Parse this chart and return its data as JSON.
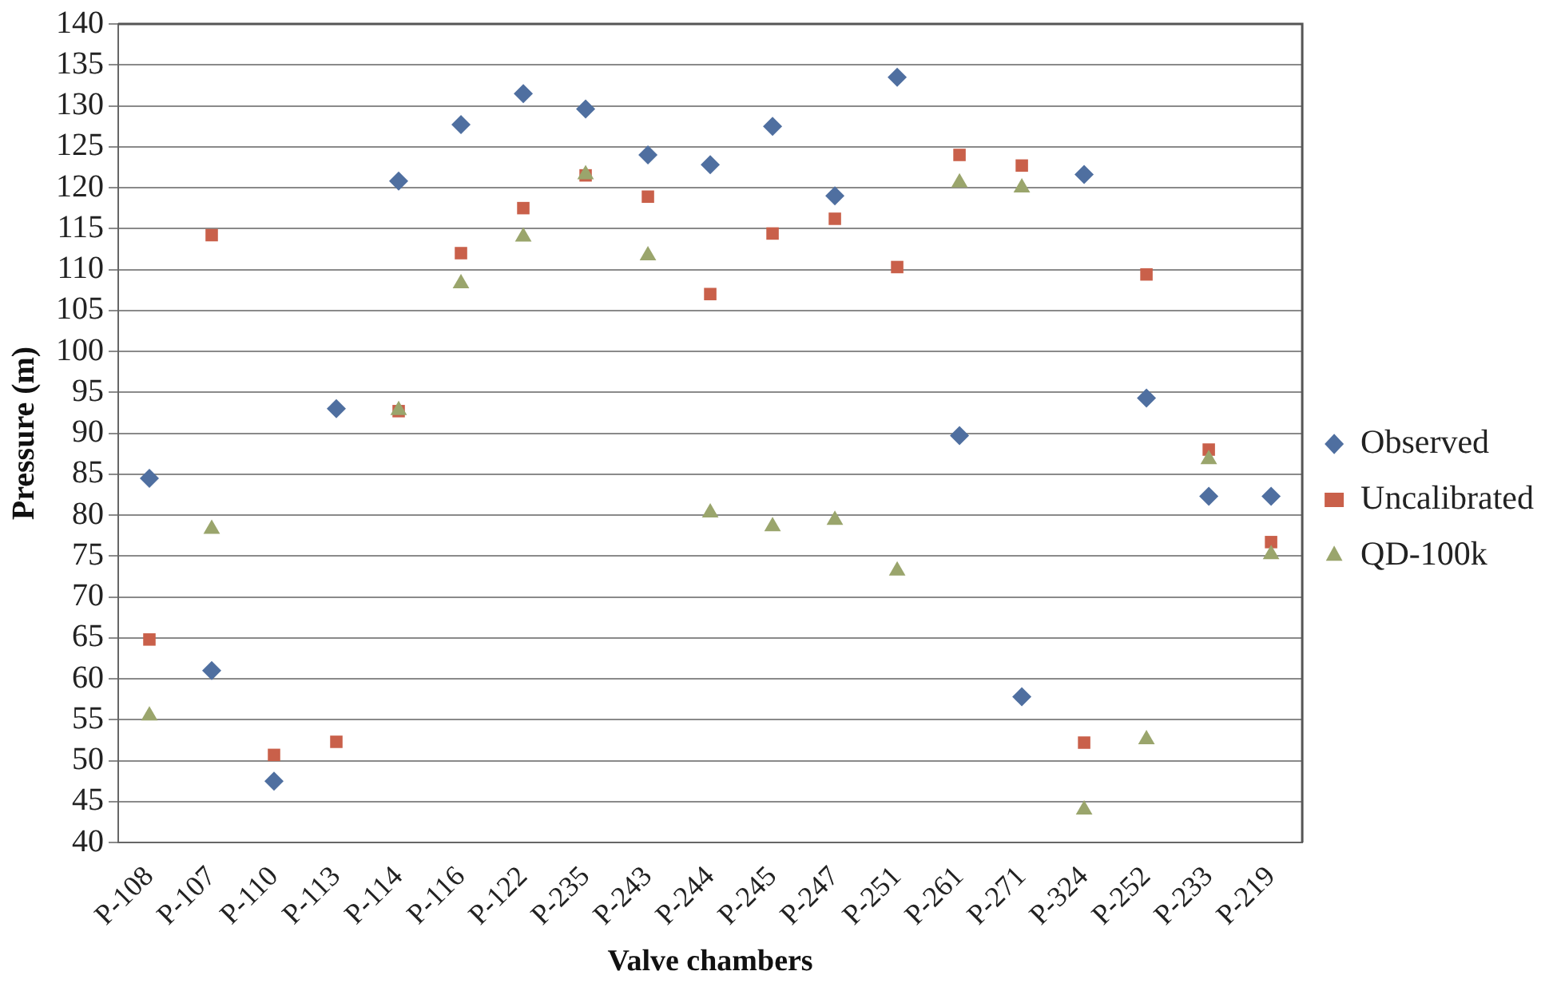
{
  "chart_data": {
    "type": "scatter",
    "xlabel": "Valve chambers",
    "ylabel": "Pressure (m)",
    "categories": [
      "P-108",
      "P-107",
      "P-110",
      "P-113",
      "P-114",
      "P-116",
      "P-122",
      "P-235",
      "P-243",
      "P-244",
      "P-245",
      "P-247",
      "P-251",
      "P-261",
      "P-271",
      "P-324",
      "P-252",
      "P-233",
      "P-219"
    ],
    "series": [
      {
        "name": "Observed",
        "color": "#4f6fa0",
        "marker": "diamond",
        "values": [
          84.5,
          61,
          47.5,
          93,
          120.8,
          127.7,
          131.5,
          129.6,
          124,
          122.8,
          127.5,
          119,
          133.5,
          89.7,
          57.8,
          121.6,
          94.3,
          82.3,
          82.3
        ]
      },
      {
        "name": "Uncalibrated",
        "color": "#c9604a",
        "marker": "square",
        "values": [
          64.8,
          114.2,
          50.7,
          52.3,
          92.7,
          112,
          117.5,
          121.5,
          118.9,
          107,
          114.4,
          116.2,
          110.3,
          124,
          122.7,
          52.2,
          109.4,
          88,
          76.7
        ]
      },
      {
        "name": "QD-100k",
        "color": "#9aa56c",
        "marker": "triangle",
        "values": [
          55.5,
          78.3,
          null,
          null,
          92.8,
          108.3,
          114,
          121.6,
          111.7,
          80.3,
          78.6,
          79.4,
          73.2,
          120.6,
          120,
          44,
          52.6,
          86.8,
          75.2
        ]
      }
    ],
    "ylim": [
      40,
      140
    ],
    "yticks": [
      40,
      45,
      50,
      55,
      60,
      65,
      70,
      75,
      80,
      85,
      90,
      95,
      100,
      105,
      110,
      115,
      120,
      125,
      130,
      135,
      140
    ],
    "grid": "y",
    "legend": "right"
  }
}
